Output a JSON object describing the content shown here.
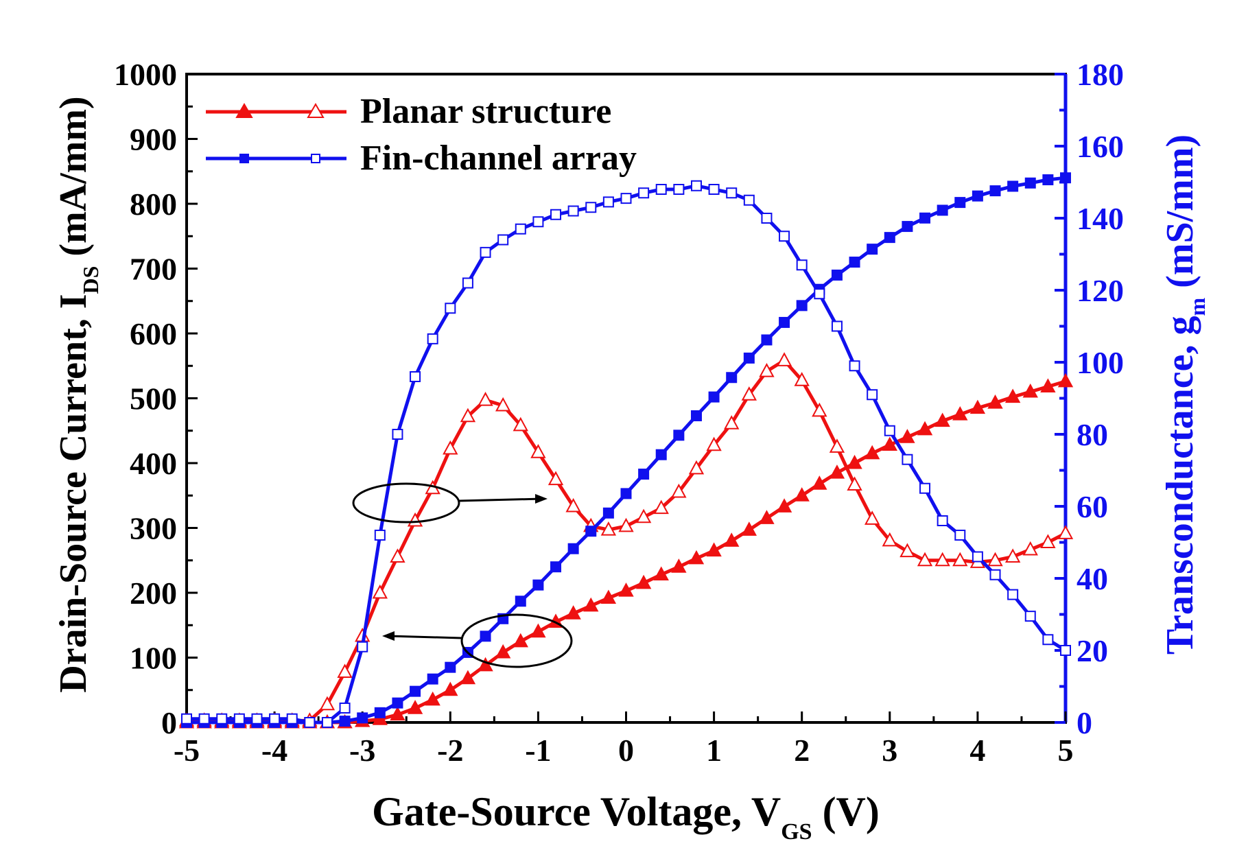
{
  "chart_data": {
    "type": "line",
    "x_axis": {
      "label_main": "Gate-Source Voltage, V",
      "label_sub": "GS",
      "label_unit": " (V)",
      "range": [
        -5,
        5
      ],
      "ticks": [
        "-5",
        "-4",
        "-3",
        "-2",
        "-1",
        "0",
        "1",
        "2",
        "3",
        "4",
        "5"
      ]
    },
    "y_left": {
      "label_main": "Drain-Source Current, I",
      "label_sub": "DS",
      "label_unit": " (mA/mm)",
      "range": [
        0,
        1000
      ],
      "ticks": [
        "0",
        "100",
        "200",
        "300",
        "400",
        "500",
        "600",
        "700",
        "800",
        "900",
        "1000"
      ]
    },
    "y_right": {
      "label_main": "Transconductance, g",
      "label_sub": "m",
      "label_unit": " (mS/mm)",
      "range": [
        0,
        180
      ],
      "ticks": [
        "0",
        "20",
        "40",
        "60",
        "80",
        "100",
        "120",
        "140",
        "160",
        "180"
      ],
      "color": "#1010ee"
    },
    "legend": {
      "position": "top-left",
      "entries": [
        {
          "name": "Planar structure",
          "color": "#ee1111",
          "marker": "triangle"
        },
        {
          "name": "Fin-channel array",
          "color": "#1010ee",
          "marker": "square"
        }
      ]
    },
    "annotations": [
      {
        "text": "ellipse with arrow pointing right: gm curves refer to right axis"
      },
      {
        "text": "ellipse with arrow pointing left: IDS curves refer to left axis"
      }
    ],
    "x": [
      -5.0,
      -4.8,
      -4.6,
      -4.4,
      -4.2,
      -4.0,
      -3.8,
      -3.6,
      -3.4,
      -3.2,
      -3.0,
      -2.8,
      -2.6,
      -2.4,
      -2.2,
      -2.0,
      -1.8,
      -1.6,
      -1.4,
      -1.2,
      -1.0,
      -0.8,
      -0.6,
      -0.4,
      -0.2,
      0.0,
      0.2,
      0.4,
      0.6,
      0.8,
      1.0,
      1.2,
      1.4,
      1.6,
      1.8,
      2.0,
      2.2,
      2.4,
      2.6,
      2.8,
      3.0,
      3.2,
      3.4,
      3.6,
      3.8,
      4.0,
      4.2,
      4.4,
      4.6,
      4.8,
      5.0
    ],
    "series": [
      {
        "name": "Planar structure IDS",
        "axis": "left",
        "fill": "filled",
        "marker": "triangle",
        "color": "#ee1111",
        "values": [
          0,
          0,
          0,
          0,
          0,
          0,
          0,
          0,
          0,
          0,
          2,
          5,
          12,
          22,
          35,
          50,
          68,
          88,
          108,
          125,
          140,
          155,
          168,
          180,
          192,
          203,
          215,
          228,
          240,
          253,
          265,
          280,
          297,
          315,
          333,
          350,
          368,
          385,
          400,
          415,
          428,
          440,
          452,
          465,
          475,
          485,
          493,
          502,
          510,
          518,
          526
        ]
      },
      {
        "name": "Planar structure gm",
        "axis": "right",
        "fill": "open",
        "marker": "triangle",
        "color": "#ee1111",
        "values": [
          0.5,
          0.5,
          0.5,
          0.5,
          0.5,
          0.5,
          0.5,
          0.5,
          5,
          14,
          24,
          36,
          46,
          56,
          65,
          76,
          85,
          89.5,
          88,
          82.5,
          75,
          67.5,
          60,
          54.5,
          53.5,
          54.5,
          57,
          59.5,
          64,
          70.5,
          77,
          83,
          91,
          97.5,
          100.5,
          95,
          86.5,
          76.5,
          66,
          56.5,
          50.5,
          47.5,
          45,
          45,
          45,
          44.5,
          45,
          46,
          48,
          50,
          52.5
        ]
      },
      {
        "name": "Fin-channel array IDS",
        "axis": "left",
        "fill": "filled",
        "marker": "square",
        "color": "#1010ee",
        "values": [
          0,
          0,
          0,
          0,
          0,
          0,
          0,
          0,
          0,
          2,
          7,
          15,
          30,
          48,
          67,
          85,
          108,
          133,
          160,
          187,
          212,
          240,
          268,
          295,
          323,
          353,
          383,
          413,
          443,
          473,
          502,
          532,
          562,
          590,
          617,
          643,
          668,
          690,
          710,
          730,
          748,
          765,
          778,
          790,
          802,
          812,
          820,
          827,
          832,
          837,
          840
        ]
      },
      {
        "name": "Fin-channel array gm",
        "axis": "right",
        "fill": "open",
        "marker": "square",
        "color": "#1010ee",
        "values": [
          1,
          1,
          1,
          1,
          1,
          1,
          1,
          0,
          0,
          4,
          21,
          52,
          80,
          96,
          106.5,
          115,
          122,
          130.5,
          134,
          137,
          139,
          141,
          142,
          143,
          144.5,
          145.5,
          147,
          148,
          148,
          149,
          148,
          147,
          145,
          140,
          135,
          127,
          119,
          110,
          99,
          91,
          81,
          73,
          65,
          56,
          52,
          46,
          41,
          35.5,
          29.5,
          23,
          20
        ]
      }
    ]
  }
}
